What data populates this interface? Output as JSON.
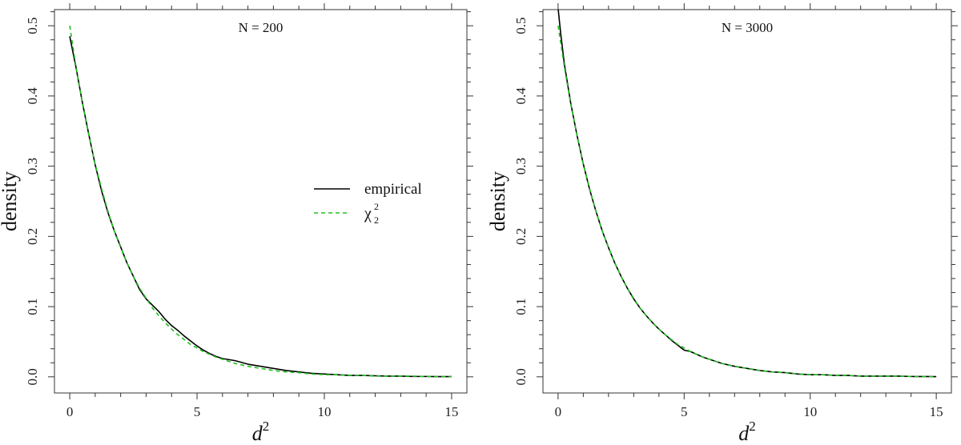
{
  "chart_data": [
    {
      "type": "line",
      "panel": "left",
      "title": "N = 200",
      "xlabel": "d",
      "xlabel_sup": "2",
      "ylabel": "density",
      "xlim": [
        -0.6,
        15.6
      ],
      "ylim": [
        -0.023,
        0.523
      ],
      "xticks": [
        0,
        5,
        10,
        15
      ],
      "xtick_labels": [
        "0",
        "5",
        "10",
        "15"
      ],
      "yticks": [
        0.0,
        0.1,
        0.2,
        0.3,
        0.4,
        0.5
      ],
      "ytick_labels": [
        "0.0",
        "0.1",
        "0.2",
        "0.3",
        "0.4",
        "0.5"
      ],
      "grid": false,
      "legend": {
        "placement": "center-right",
        "entries": [
          {
            "label": "empirical",
            "style": "solid"
          },
          {
            "label": "χ",
            "sub": "2",
            "sup": "2",
            "style": "dashed"
          }
        ]
      },
      "series": [
        {
          "name": "empirical",
          "color": "#000000",
          "style": "solid",
          "x": [
            0,
            0.25,
            0.5,
            0.75,
            1,
            1.25,
            1.5,
            1.75,
            2,
            2.25,
            2.5,
            2.75,
            3,
            3.25,
            3.5,
            3.75,
            4,
            4.25,
            4.5,
            4.75,
            5,
            5.25,
            5.5,
            5.75,
            6,
            6.5,
            7,
            7.5,
            8,
            8.5,
            9,
            9.5,
            10,
            10.5,
            11,
            11.5,
            12,
            12.5,
            13,
            13.5,
            14,
            14.5,
            15
          ],
          "y": [
            0.485,
            0.44,
            0.39,
            0.345,
            0.302,
            0.265,
            0.234,
            0.208,
            0.185,
            0.162,
            0.143,
            0.124,
            0.111,
            0.102,
            0.093,
            0.082,
            0.073,
            0.066,
            0.058,
            0.051,
            0.044,
            0.038,
            0.033,
            0.029,
            0.026,
            0.023,
            0.018,
            0.015,
            0.012,
            0.009,
            0.007,
            0.005,
            0.004,
            0.003,
            0.002,
            0.002,
            0.0015,
            0.001,
            0.001,
            0.0005,
            0.0005,
            0.0003,
            0.0003
          ]
        },
        {
          "name": "χ²₂",
          "color": "#1fbf1f",
          "style": "dashed",
          "x": [
            0,
            0.25,
            0.5,
            0.75,
            1,
            1.25,
            1.5,
            1.75,
            2,
            2.25,
            2.5,
            2.75,
            3,
            3.25,
            3.5,
            3.75,
            4,
            4.25,
            4.5,
            4.75,
            5,
            5.25,
            5.5,
            5.75,
            6,
            6.5,
            7,
            7.5,
            8,
            8.5,
            9,
            9.5,
            10,
            10.5,
            11,
            11.5,
            12,
            12.5,
            13,
            13.5,
            14,
            14.5,
            15
          ],
          "y": [
            0.5,
            0.441,
            0.389,
            0.344,
            0.303,
            0.268,
            0.236,
            0.208,
            0.184,
            0.162,
            0.143,
            0.126,
            0.112,
            0.098,
            0.087,
            0.077,
            0.068,
            0.06,
            0.053,
            0.046,
            0.041,
            0.036,
            0.032,
            0.028,
            0.025,
            0.019,
            0.015,
            0.012,
            0.009,
            0.007,
            0.006,
            0.004,
            0.003,
            0.003,
            0.002,
            0.002,
            0.001,
            0.001,
            0.001,
            0.001,
            0.0005,
            0.0004,
            0.0003
          ]
        }
      ]
    },
    {
      "type": "line",
      "panel": "right",
      "title": "N = 3000",
      "xlabel": "d",
      "xlabel_sup": "2",
      "ylabel": "density",
      "xlim": [
        -0.6,
        15.6
      ],
      "ylim": [
        -0.023,
        0.523
      ],
      "xticks": [
        0,
        5,
        10,
        15
      ],
      "xtick_labels": [
        "0",
        "5",
        "10",
        "15"
      ],
      "yticks": [
        0.0,
        0.1,
        0.2,
        0.3,
        0.4,
        0.5
      ],
      "ytick_labels": [
        "0.0",
        "0.1",
        "0.2",
        "0.3",
        "0.4",
        "0.5"
      ],
      "grid": false,
      "series": [
        {
          "name": "empirical",
          "color": "#000000",
          "style": "solid",
          "x": [
            0,
            0.1,
            0.25,
            0.5,
            0.75,
            1,
            1.25,
            1.5,
            1.75,
            2,
            2.25,
            2.5,
            2.75,
            3,
            3.25,
            3.5,
            3.75,
            4,
            4.25,
            4.5,
            4.75,
            5,
            5.25,
            5.5,
            5.75,
            6,
            6.5,
            7,
            7.5,
            8,
            8.5,
            9,
            9.5,
            10,
            10.5,
            11,
            11.5,
            12,
            12.5,
            13,
            13.5,
            14,
            14.5,
            15
          ],
          "y": [
            0.525,
            0.49,
            0.445,
            0.39,
            0.344,
            0.303,
            0.267,
            0.236,
            0.208,
            0.184,
            0.162,
            0.143,
            0.126,
            0.111,
            0.098,
            0.087,
            0.077,
            0.068,
            0.06,
            0.052,
            0.045,
            0.038,
            0.036,
            0.032,
            0.028,
            0.025,
            0.019,
            0.015,
            0.012,
            0.009,
            0.007,
            0.006,
            0.004,
            0.003,
            0.003,
            0.002,
            0.002,
            0.001,
            0.001,
            0.001,
            0.001,
            0.0005,
            0.0004,
            0.0003
          ]
        },
        {
          "name": "χ²₂",
          "color": "#1fbf1f",
          "style": "dashed",
          "x": [
            0,
            0.25,
            0.5,
            0.75,
            1,
            1.25,
            1.5,
            1.75,
            2,
            2.25,
            2.5,
            2.75,
            3,
            3.25,
            3.5,
            3.75,
            4,
            4.25,
            4.5,
            4.75,
            5,
            5.25,
            5.5,
            5.75,
            6,
            6.5,
            7,
            7.5,
            8,
            8.5,
            9,
            9.5,
            10,
            10.5,
            11,
            11.5,
            12,
            12.5,
            13,
            13.5,
            14,
            14.5,
            15
          ],
          "y": [
            0.5,
            0.441,
            0.389,
            0.344,
            0.303,
            0.268,
            0.236,
            0.208,
            0.184,
            0.162,
            0.143,
            0.126,
            0.112,
            0.098,
            0.087,
            0.077,
            0.068,
            0.06,
            0.053,
            0.046,
            0.041,
            0.036,
            0.032,
            0.028,
            0.025,
            0.019,
            0.015,
            0.012,
            0.009,
            0.007,
            0.006,
            0.004,
            0.003,
            0.003,
            0.002,
            0.002,
            0.001,
            0.001,
            0.001,
            0.001,
            0.0005,
            0.0004,
            0.0003
          ]
        }
      ]
    }
  ]
}
